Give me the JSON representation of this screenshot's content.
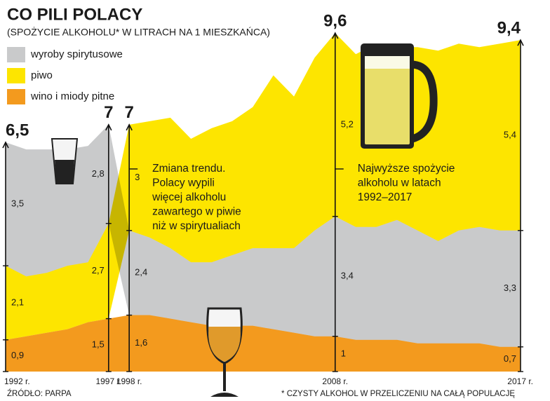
{
  "chart_data": {
    "type": "stacked_area",
    "title": "CO PILI POLACY",
    "subtitle": "(SPOŻYCIE ALKOHOLU* W LITRACH NA 1 MIESZKAŃCA)",
    "x": [
      1992,
      1993,
      1994,
      1995,
      1996,
      1997,
      1998,
      1999,
      2000,
      2001,
      2002,
      2003,
      2004,
      2005,
      2006,
      2007,
      2008,
      2009,
      2010,
      2011,
      2012,
      2013,
      2014,
      2015,
      2016,
      2017
    ],
    "xlim": [
      1992,
      2017
    ],
    "xticks": [
      {
        "value": 1992,
        "label": "1992 r."
      },
      {
        "value": 1997,
        "label": "1997 r."
      },
      {
        "value": 1998,
        "label": "1998 r."
      },
      {
        "value": 2008,
        "label": "2008 r."
      },
      {
        "value": 2017,
        "label": "2017 r."
      }
    ],
    "ylim": [
      0,
      10
    ],
    "series": [
      {
        "name": "wino i miody pitne",
        "color": "#f39a1e",
        "values": [
          0.9,
          1.0,
          1.1,
          1.2,
          1.4,
          1.5,
          1.6,
          1.6,
          1.5,
          1.4,
          1.3,
          1.3,
          1.3,
          1.2,
          1.1,
          1.0,
          1,
          0.9,
          0.9,
          0.9,
          0.8,
          0.8,
          0.8,
          0.8,
          0.7,
          0.7
        ],
        "value_labels": [
          "0,9",
          null,
          null,
          null,
          null,
          "1,5",
          "1,6",
          null,
          null,
          null,
          null,
          null,
          null,
          null,
          null,
          null,
          "1",
          null,
          null,
          null,
          null,
          null,
          null,
          null,
          null,
          "0,7"
        ]
      },
      {
        "name": "piwo",
        "color": "#fde500",
        "values": [
          2.1,
          1.7,
          1.7,
          1.8,
          1.7,
          2.7,
          3,
          3.3,
          3.7,
          3.5,
          3.8,
          3.8,
          4.0,
          4.9,
          4.3,
          4.9,
          5.2,
          4.9,
          5.2,
          4.9,
          5.2,
          5.4,
          5.3,
          5.1,
          5.3,
          5.4
        ],
        "value_labels": [
          "2,1",
          null,
          null,
          null,
          null,
          "2,7",
          "3",
          null,
          null,
          null,
          null,
          null,
          null,
          null,
          null,
          null,
          "5,2",
          null,
          null,
          null,
          null,
          null,
          null,
          null,
          null,
          "5,4"
        ]
      },
      {
        "name": "wyroby spirytusowe",
        "color": "#c9cacb",
        "values": [
          3.5,
          3.6,
          3.5,
          3.3,
          3.3,
          2.8,
          2.4,
          2.2,
          2.0,
          1.7,
          1.8,
          2.0,
          2.2,
          2.3,
          2.4,
          3.0,
          3.4,
          3.2,
          3.2,
          3.4,
          3.2,
          2.9,
          3.2,
          3.3,
          3.3,
          3.3
        ],
        "value_labels": [
          "3,5",
          null,
          null,
          null,
          null,
          "2,8",
          "2,4",
          null,
          null,
          null,
          null,
          null,
          null,
          null,
          null,
          null,
          "3,4",
          null,
          null,
          null,
          null,
          null,
          null,
          null,
          null,
          "3,3"
        ]
      }
    ],
    "legend_order": [
      2,
      1,
      0
    ],
    "totals": [
      {
        "x": 1992,
        "value": 6.5,
        "label": "6,5"
      },
      {
        "x": 1997,
        "value": 7,
        "label": "7"
      },
      {
        "x": 1998,
        "value": 7,
        "label": "7"
      },
      {
        "x": 2008,
        "value": 9.6,
        "label": "9,6"
      },
      {
        "x": 2017,
        "value": 9.4,
        "label": "9,4"
      }
    ],
    "annotations": [
      {
        "x": 1998,
        "lines": [
          "Zmiana trendu.",
          "Polacy wypili",
          "więcej alkoholu",
          "zawartego w piwie",
          "niż w spirytualiach"
        ]
      },
      {
        "x": 2008,
        "lines": [
          "Najwyższe spożycie",
          "alkoholu w latach",
          "1992–2017"
        ]
      }
    ],
    "source": "ŹRÓDŁO: PARPA",
    "footnote": "* CZYSTY ALKOHOL W PRZELICZENIU NA CAŁĄ POPULACJĘ"
  }
}
